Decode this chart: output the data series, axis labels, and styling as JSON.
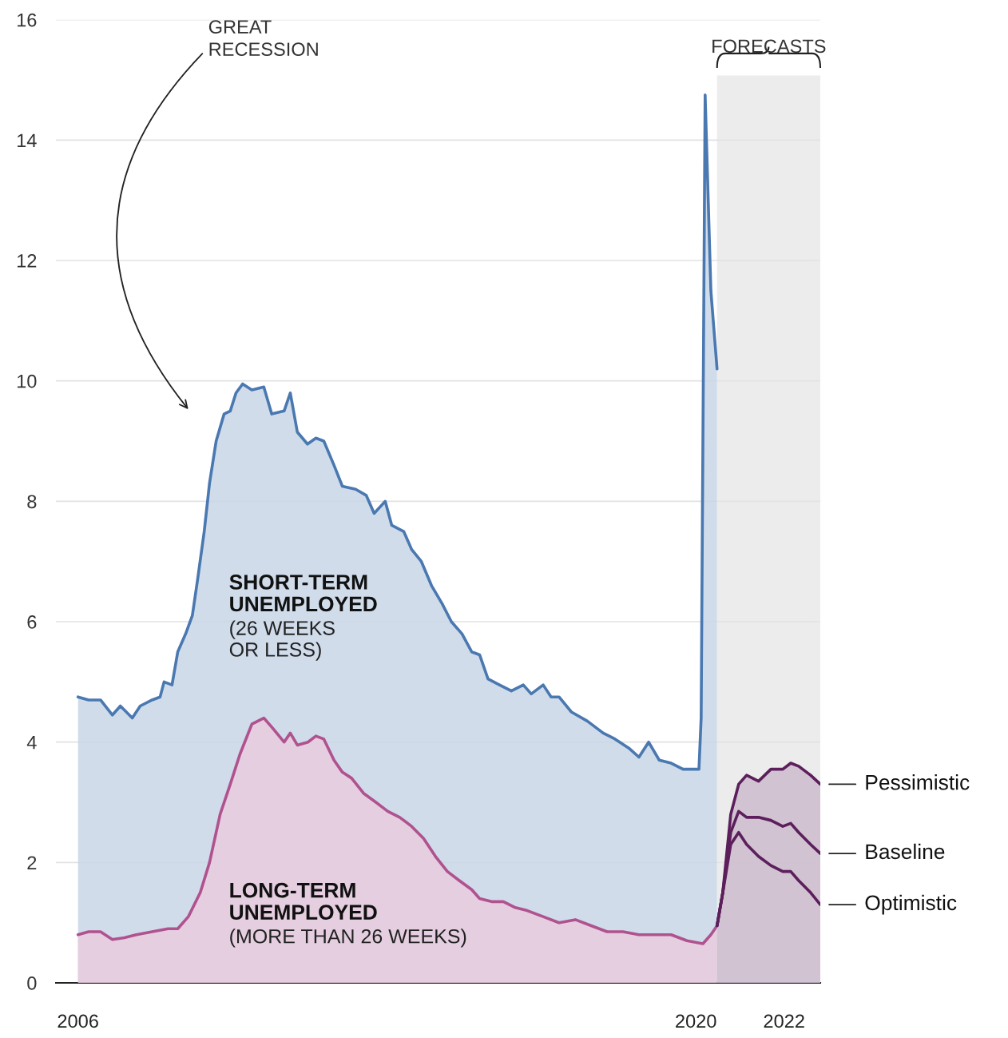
{
  "chart_data": {
    "type": "area",
    "series": [
      {
        "name": "SHORT-TERM\nUNEMPLOYED",
        "color": "#4a78b0",
        "x": [
          2006.0,
          2006.24,
          2006.51,
          2006.78,
          2006.96,
          2007.23,
          2007.41,
          2007.68,
          2007.86,
          2007.95,
          2008.13,
          2008.26,
          2008.44,
          2008.59,
          2008.71,
          2008.86,
          2008.98,
          2009.13,
          2009.31,
          2009.45,
          2009.58,
          2009.73,
          2009.94,
          2010.21,
          2010.39,
          2010.67,
          2010.81,
          2010.97,
          2011.2,
          2011.39,
          2011.57,
          2011.8,
          2011.99,
          2012.29,
          2012.53,
          2012.71,
          2012.96,
          2013.11,
          2013.38,
          2013.56,
          2013.78,
          2014.01,
          2014.25,
          2014.46,
          2014.7,
          2014.92,
          2015.1,
          2015.29,
          2015.55,
          2015.82,
          2016.09,
          2016.27,
          2016.54,
          2016.72,
          2016.9,
          2017.18,
          2017.54,
          2017.9,
          2018.17,
          2018.48,
          2018.71,
          2018.93,
          2019.17,
          2019.44,
          2019.71,
          2019.89,
          2020.07,
          2020.12,
          2020.21,
          2020.34,
          2020.48
        ],
        "values": [
          4.75,
          4.7,
          4.7,
          4.45,
          4.6,
          4.4,
          4.6,
          4.7,
          4.75,
          5.0,
          4.95,
          5.5,
          5.8,
          6.1,
          6.7,
          7.5,
          8.3,
          9.0,
          9.45,
          9.5,
          9.8,
          9.95,
          9.85,
          9.9,
          9.45,
          9.5,
          9.8,
          9.15,
          8.95,
          9.05,
          9.0,
          8.6,
          8.25,
          8.2,
          8.1,
          7.8,
          8.0,
          7.6,
          7.5,
          7.2,
          7.0,
          6.6,
          6.3,
          6.0,
          5.8,
          5.5,
          5.45,
          5.05,
          4.95,
          4.85,
          4.95,
          4.8,
          4.95,
          4.75,
          4.75,
          4.5,
          4.35,
          4.15,
          4.05,
          3.9,
          3.75,
          4.0,
          3.7,
          3.65,
          3.55,
          3.55,
          3.55,
          4.4,
          14.75,
          11.5,
          10.2
        ]
      },
      {
        "name": "LONG-TERM\nUNEMPLOYED",
        "color": "#b0528f",
        "x": [
          2006.0,
          2006.24,
          2006.51,
          2006.78,
          2007.05,
          2007.32,
          2007.68,
          2008.04,
          2008.26,
          2008.5,
          2008.77,
          2008.98,
          2009.22,
          2009.45,
          2009.67,
          2009.94,
          2010.21,
          2010.39,
          2010.67,
          2010.81,
          2010.97,
          2011.21,
          2011.39,
          2011.57,
          2011.8,
          2011.99,
          2012.2,
          2012.47,
          2012.75,
          2013.02,
          2013.29,
          2013.56,
          2013.83,
          2014.1,
          2014.37,
          2014.64,
          2014.92,
          2015.1,
          2015.37,
          2015.64,
          2015.91,
          2016.18,
          2016.54,
          2016.9,
          2017.27,
          2017.63,
          2017.99,
          2018.35,
          2018.71,
          2019.07,
          2019.44,
          2019.8,
          2020.16,
          2020.34,
          2020.48
        ],
        "values": [
          0.8,
          0.85,
          0.85,
          0.72,
          0.75,
          0.8,
          0.85,
          0.9,
          0.9,
          1.1,
          1.5,
          2.0,
          2.8,
          3.3,
          3.8,
          4.3,
          4.4,
          4.25,
          4.0,
          4.15,
          3.95,
          4.0,
          4.1,
          4.05,
          3.7,
          3.5,
          3.4,
          3.15,
          3.0,
          2.85,
          2.75,
          2.6,
          2.4,
          2.1,
          1.85,
          1.7,
          1.55,
          1.4,
          1.35,
          1.35,
          1.25,
          1.2,
          1.1,
          1.0,
          1.05,
          0.95,
          0.85,
          0.85,
          0.8,
          0.8,
          0.8,
          0.7,
          0.65,
          0.8,
          0.95
        ]
      },
      {
        "name": "Pessimistic",
        "color": "#5c1f5c",
        "x": [
          2020.48,
          2020.61,
          2020.79,
          2020.97,
          2021.15,
          2021.42,
          2021.7,
          2021.97,
          2022.15,
          2022.33,
          2022.6,
          2022.82
        ],
        "values": [
          0.95,
          1.5,
          2.8,
          3.3,
          3.45,
          3.35,
          3.55,
          3.55,
          3.65,
          3.6,
          3.45,
          3.3
        ]
      },
      {
        "name": "Baseline",
        "type": "line",
        "color": "#5c1f5c",
        "x": [
          2020.48,
          2020.61,
          2020.79,
          2020.97,
          2021.15,
          2021.42,
          2021.7,
          2021.97,
          2022.15,
          2022.33,
          2022.6,
          2022.82
        ],
        "values": [
          0.95,
          1.5,
          2.5,
          2.85,
          2.75,
          2.75,
          2.7,
          2.6,
          2.65,
          2.5,
          2.3,
          2.15
        ]
      },
      {
        "name": "Optimistic",
        "type": "line",
        "color": "#5c1f5c",
        "x": [
          2020.48,
          2020.61,
          2020.79,
          2020.97,
          2021.15,
          2021.42,
          2021.7,
          2021.97,
          2022.15,
          2022.33,
          2022.6,
          2022.82
        ],
        "values": [
          0.95,
          1.5,
          2.3,
          2.5,
          2.3,
          2.1,
          1.95,
          1.85,
          1.85,
          1.7,
          1.5,
          1.3
        ]
      }
    ],
    "xlim": [
      2005.5,
      2022.82
    ],
    "xticks": [
      2006,
      2020,
      2022
    ],
    "ylim": [
      0,
      16
    ],
    "yticks": [
      0,
      2,
      4,
      6,
      8,
      10,
      12,
      14,
      16
    ],
    "grid": "y",
    "bands": [
      {
        "axis": "x",
        "from": 2020.48,
        "to": 2022.82,
        "label": "FORECASTS",
        "color": "#ececec"
      }
    ],
    "annotations": [
      "GREAT\nRECESSION",
      "(26 WEEKS\nOR LESS)",
      "(MORE THAN 26 WEEKS)"
    ]
  }
}
